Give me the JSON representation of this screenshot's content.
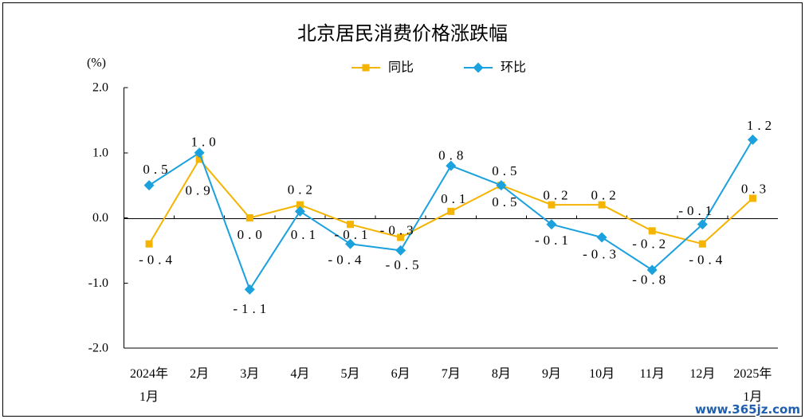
{
  "watermark": "www.365jz.com",
  "chart_data": {
    "type": "line",
    "title": "北京居民消费价格涨跌幅",
    "ylabel": "(%)",
    "categories": [
      "2024年\n1月",
      "2月",
      "3月",
      "4月",
      "5月",
      "6月",
      "7月",
      "8月",
      "9月",
      "10月",
      "11月",
      "12月",
      "2025年\n1月"
    ],
    "ylim": [
      -2.0,
      2.0
    ],
    "yticks": [
      2.0,
      1.0,
      0.0,
      -1.0,
      -2.0
    ],
    "ytick_labels": [
      "2.0",
      "1.0",
      "0.0",
      "-1.0",
      "-2.0"
    ],
    "grid": false,
    "legend": "top-center",
    "series": [
      {
        "name": "同比",
        "color": "#f5b400",
        "marker": "square",
        "values": [
          -0.4,
          0.9,
          0.0,
          0.2,
          -0.1,
          -0.3,
          0.1,
          0.5,
          0.2,
          0.2,
          -0.2,
          -0.4,
          0.3
        ],
        "labels": [
          "-0.4",
          "0.9",
          "0.0",
          "0.2",
          "-0.1",
          "-0.3",
          "0.1",
          "0.5",
          "0.2",
          "0.2",
          "-0.2",
          "-0.4",
          "0.3"
        ]
      },
      {
        "name": "环比",
        "color": "#1ba1dd",
        "marker": "diamond",
        "values": [
          0.5,
          1.0,
          -1.1,
          0.1,
          -0.4,
          -0.5,
          0.8,
          0.5,
          -0.1,
          -0.3,
          -0.8,
          -0.1,
          1.2
        ],
        "labels": [
          "0.5",
          "1.0",
          "-1.1",
          "0.1",
          "-0.4",
          "-0.5",
          "0.8",
          "0.5",
          "-0.1",
          "-0.3",
          "-0.8",
          "-0.1",
          "1.2"
        ]
      }
    ]
  }
}
